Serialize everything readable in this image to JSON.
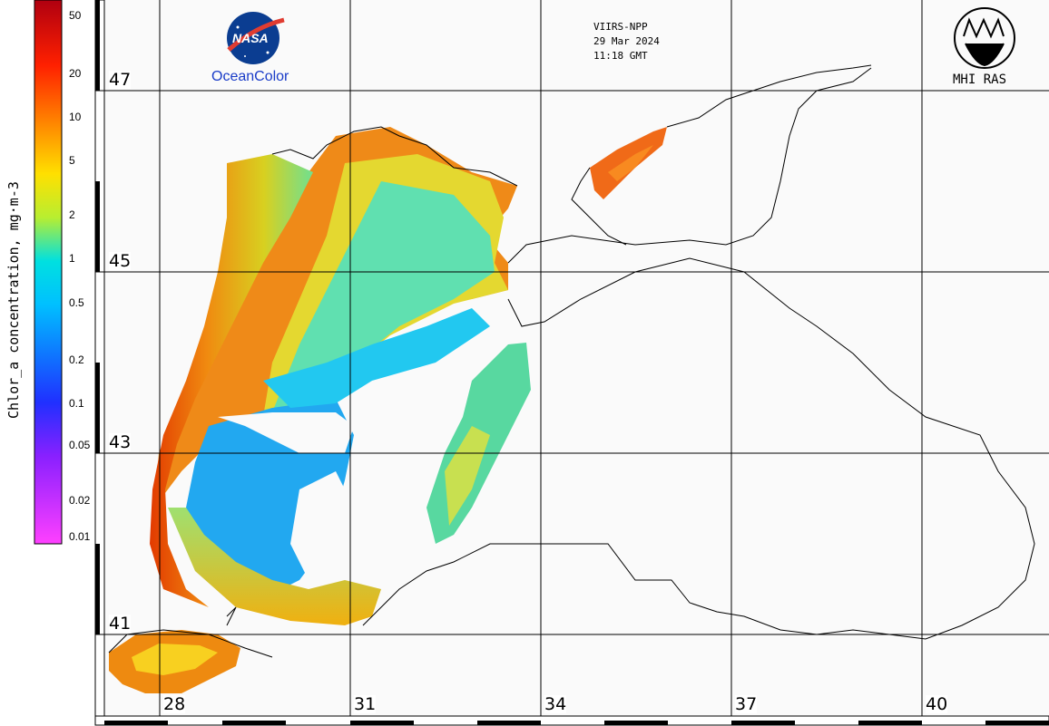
{
  "header": {
    "sensor": "VIIRS-NPP",
    "date": "29 Mar 2024",
    "time": "11:18 GMT"
  },
  "logos": {
    "left_wordmark": "NASA",
    "left_caption": "OceanColor",
    "right_caption": "MHI RAS"
  },
  "colorbar": {
    "title": "Chlor_a concentration, mg·m-3",
    "ticks": [
      "50",
      "20",
      "10",
      "5",
      "2",
      "1",
      "0.5",
      "0.2",
      "0.1",
      "0.05",
      "0.02",
      "0.01"
    ],
    "colors": [
      "#c81010",
      "#ff2000",
      "#ff7a00",
      "#ffd200",
      "#ccee22",
      "#33dd88",
      "#00d8ff",
      "#2a90ff",
      "#3050ff",
      "#8030ff",
      "#c020ff",
      "#ff40ff"
    ]
  },
  "grid": {
    "latitudes": [
      "47",
      "45",
      "43",
      "41"
    ],
    "longitudes": [
      "28",
      "31",
      "34",
      "37",
      "40"
    ]
  },
  "map_legend": {
    "icons": [
      "nasa-logo-icon",
      "mhi-ras-logo-icon"
    ]
  }
}
